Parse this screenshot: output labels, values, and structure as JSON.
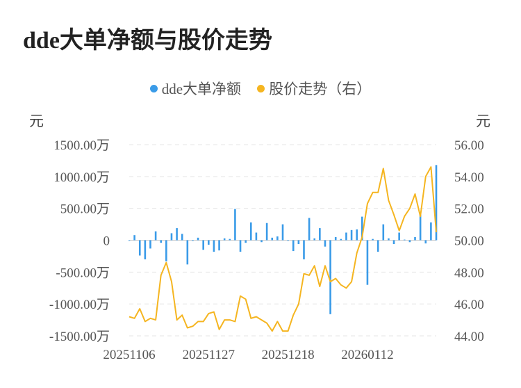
{
  "title": "dde大单净额与股价走势",
  "legend": [
    {
      "label": "dde大单净额",
      "color": "#3a9be8"
    },
    {
      "label": "股价走势（右）",
      "color": "#f5b520"
    }
  ],
  "left_unit": "元",
  "right_unit": "元",
  "chart_data": {
    "type": "bar+line",
    "title": "dde大单净额与股价走势",
    "x_tick_labels": [
      "20251106",
      "20251127",
      "20251218",
      "20260112"
    ],
    "y_left": {
      "ticks": [
        "1500.00万",
        "1000.00万",
        "500.00万",
        "0",
        "-500.00万",
        "-1000.00万",
        "-1500.00万"
      ],
      "lim": [
        -1500,
        1500
      ],
      "unit": "万"
    },
    "y_right": {
      "ticks": [
        "56.00",
        "54.00",
        "52.00",
        "50.00",
        "48.00",
        "46.00",
        "44.00"
      ],
      "lim": [
        44,
        56
      ]
    },
    "grid": true,
    "legend_position": "top-center",
    "series": [
      {
        "name": "dde大单净额",
        "type": "bar",
        "axis": "left",
        "color": "#3a9be8",
        "values": [
          0,
          80,
          -240,
          -300,
          -130,
          140,
          -40,
          -330,
          110,
          190,
          100,
          -380,
          -10,
          40,
          -150,
          -70,
          -180,
          -160,
          30,
          20,
          490,
          -180,
          -40,
          280,
          120,
          -30,
          270,
          40,
          60,
          250,
          0,
          -170,
          -60,
          -300,
          350,
          30,
          190,
          -100,
          -1160,
          50,
          20,
          120,
          160,
          170,
          370,
          -700,
          20,
          -180,
          250,
          30,
          -60,
          120,
          10,
          -30,
          50,
          440,
          -50,
          280,
          1180
        ]
      },
      {
        "name": "股价走势（右）",
        "type": "line",
        "axis": "right",
        "color": "#f5b520",
        "values": [
          45.2,
          45.1,
          45.7,
          44.9,
          45.1,
          45.0,
          47.8,
          48.6,
          47.4,
          45.0,
          45.3,
          44.5,
          44.6,
          44.9,
          44.9,
          45.4,
          45.5,
          44.4,
          45.0,
          45.0,
          44.9,
          46.5,
          46.3,
          45.1,
          45.2,
          45.0,
          44.8,
          44.3,
          44.9,
          44.3,
          44.3,
          45.3,
          46.0,
          47.9,
          47.8,
          48.4,
          47.1,
          48.4,
          47.4,
          47.6,
          47.2,
          47.0,
          47.4,
          49.2,
          50.2,
          52.3,
          53.0,
          53.0,
          54.5,
          52.5,
          51.6,
          50.6,
          51.5,
          52.0,
          52.9,
          51.5,
          54.0,
          54.6,
          50.5
        ]
      }
    ]
  }
}
